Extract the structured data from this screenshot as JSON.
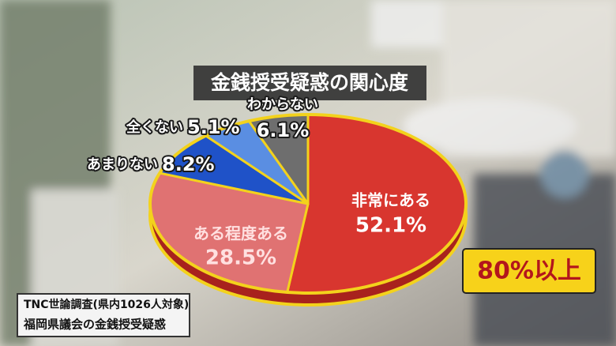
{
  "chart_data": {
    "type": "pie",
    "title": "金銭授受疑惑の関心度",
    "categories": [
      "非常にある",
      "ある程度ある",
      "あまりない",
      "全くない",
      "わからない"
    ],
    "values": [
      52.1,
      28.5,
      8.2,
      5.1,
      6.1
    ],
    "value_labels": [
      "52.1%",
      "28.5%",
      "8.2%",
      "5.1%",
      "6.1%"
    ],
    "colors": [
      "#d8362f",
      "#e07272",
      "#1f52c8",
      "#5a8ee2",
      "#6e6e6e"
    ],
    "annotation": "80%以上",
    "source_lines": [
      "TNC世論調査(県内1026人対象)",
      "福岡県議会の金銭授受疑惑"
    ]
  }
}
